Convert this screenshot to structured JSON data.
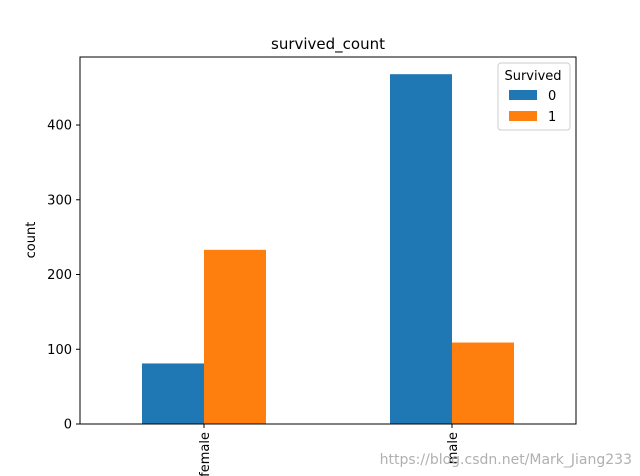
{
  "chart_data": {
    "type": "bar",
    "title": "survived_count",
    "xlabel": "",
    "ylabel": "count",
    "categories": [
      "female",
      "male"
    ],
    "series": [
      {
        "name": "0",
        "values": [
          81,
          468
        ],
        "color": "#1f77b4"
      },
      {
        "name": "1",
        "values": [
          233,
          109
        ],
        "color": "#ff7f0e"
      }
    ],
    "ylim": [
      0,
      491
    ],
    "yticks": [
      0,
      100,
      200,
      300,
      400
    ],
    "legend": {
      "title": "Survived",
      "placement": "top-right"
    },
    "grid": false
  },
  "watermark": "https://blog.csdn.net/Mark_Jiang233"
}
